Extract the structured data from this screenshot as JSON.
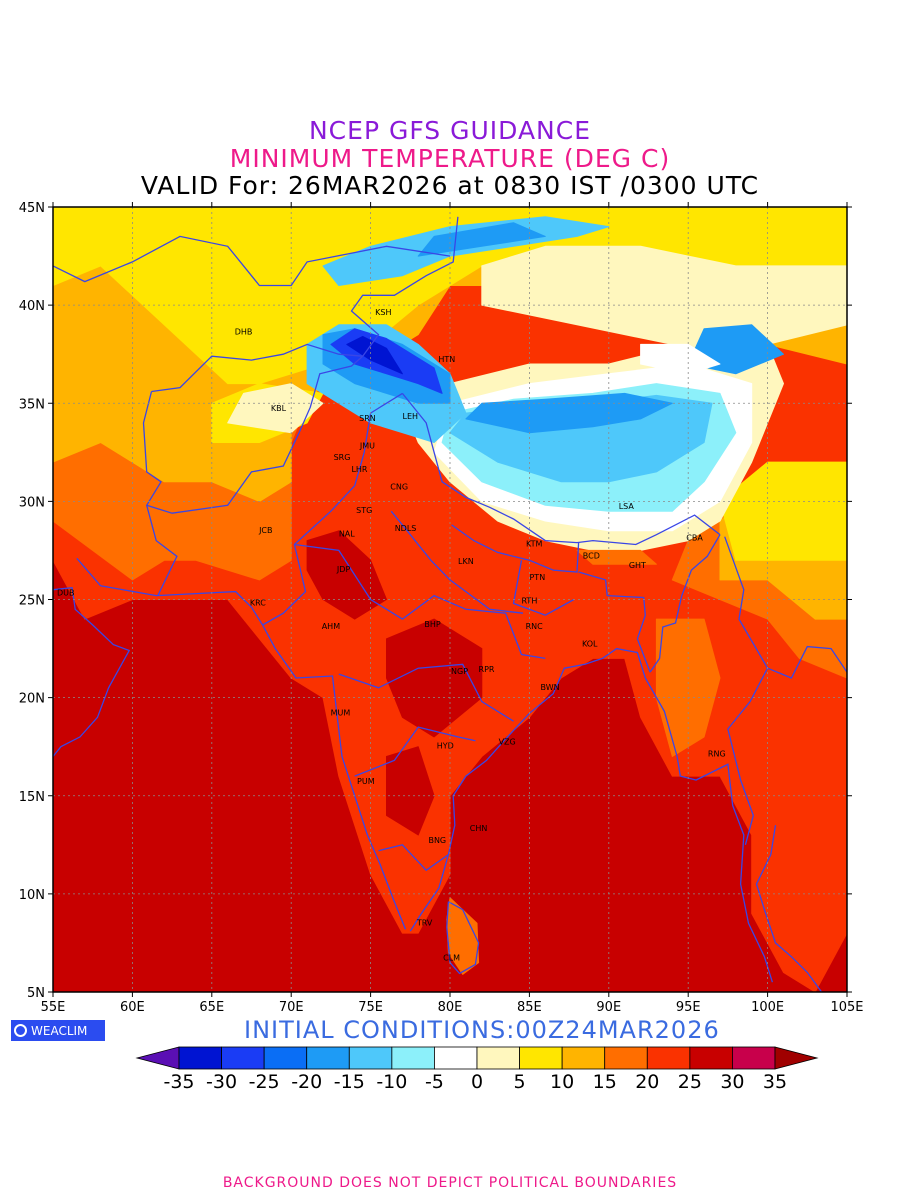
{
  "title": {
    "line1": "NCEP GFS GUIDANCE",
    "line2": "MINIMUM TEMPERATURE (DEG C)",
    "line3": "VALID For: 26MAR2026 at 0830 IST /0300 UTC"
  },
  "axes": {
    "x_ticks": [
      "55E",
      "60E",
      "65E",
      "70E",
      "75E",
      "80E",
      "85E",
      "90E",
      "95E",
      "100E",
      "105E"
    ],
    "y_ticks": [
      "45N",
      "40N",
      "35N",
      "30N",
      "25N",
      "20N",
      "15N",
      "10N",
      "5N"
    ],
    "lon_range": [
      55,
      105
    ],
    "lat_range": [
      5,
      45
    ],
    "gridlines": true
  },
  "cities": [
    {
      "name": "DHB",
      "lon": 67.0,
      "lat": 38.5
    },
    {
      "name": "KSH",
      "lon": 75.8,
      "lat": 39.5
    },
    {
      "name": "HTN",
      "lon": 79.8,
      "lat": 37.1
    },
    {
      "name": "KBL",
      "lon": 69.2,
      "lat": 34.6
    },
    {
      "name": "SRN",
      "lon": 74.8,
      "lat": 34.1
    },
    {
      "name": "LEH",
      "lon": 77.5,
      "lat": 34.2
    },
    {
      "name": "JMU",
      "lon": 74.8,
      "lat": 32.7
    },
    {
      "name": "SRG",
      "lon": 73.2,
      "lat": 32.1
    },
    {
      "name": "LHR",
      "lon": 74.3,
      "lat": 31.5
    },
    {
      "name": "CNG",
      "lon": 76.8,
      "lat": 30.6
    },
    {
      "name": "STG",
      "lon": 74.6,
      "lat": 29.4
    },
    {
      "name": "JCB",
      "lon": 68.4,
      "lat": 28.4
    },
    {
      "name": "NAL",
      "lon": 73.5,
      "lat": 28.2
    },
    {
      "name": "NDLS",
      "lon": 77.2,
      "lat": 28.5
    },
    {
      "name": "LSA",
      "lon": 91.1,
      "lat": 29.6
    },
    {
      "name": "KTM",
      "lon": 85.3,
      "lat": 27.7
    },
    {
      "name": "CBA",
      "lon": 95.4,
      "lat": 28.0
    },
    {
      "name": "BCD",
      "lon": 88.9,
      "lat": 27.1
    },
    {
      "name": "GHT",
      "lon": 91.8,
      "lat": 26.6
    },
    {
      "name": "JDP",
      "lon": 73.3,
      "lat": 26.4
    },
    {
      "name": "LKN",
      "lon": 81.0,
      "lat": 26.8
    },
    {
      "name": "PTN",
      "lon": 85.5,
      "lat": 26.0
    },
    {
      "name": "DUB",
      "lon": 55.8,
      "lat": 25.2
    },
    {
      "name": "KRC",
      "lon": 67.9,
      "lat": 24.7
    },
    {
      "name": "RTH",
      "lon": 85.0,
      "lat": 24.8
    },
    {
      "name": "BHP",
      "lon": 78.9,
      "lat": 23.6
    },
    {
      "name": "RNC",
      "lon": 85.3,
      "lat": 23.5
    },
    {
      "name": "AHM",
      "lon": 72.5,
      "lat": 23.5
    },
    {
      "name": "KOL",
      "lon": 88.8,
      "lat": 22.6
    },
    {
      "name": "NGP",
      "lon": 80.6,
      "lat": 21.2
    },
    {
      "name": "RPR",
      "lon": 82.3,
      "lat": 21.3
    },
    {
      "name": "BWN",
      "lon": 86.3,
      "lat": 20.4
    },
    {
      "name": "MUM",
      "lon": 73.1,
      "lat": 19.1
    },
    {
      "name": "HYD",
      "lon": 79.7,
      "lat": 17.4
    },
    {
      "name": "VZG",
      "lon": 83.6,
      "lat": 17.6
    },
    {
      "name": "RNG",
      "lon": 96.8,
      "lat": 17.0
    },
    {
      "name": "PUM",
      "lon": 74.7,
      "lat": 15.6
    },
    {
      "name": "CHN",
      "lon": 81.8,
      "lat": 13.2
    },
    {
      "name": "BNG",
      "lon": 79.2,
      "lat": 12.6
    },
    {
      "name": "TRV",
      "lon": 78.4,
      "lat": 8.4
    },
    {
      "name": "CLM",
      "lon": 80.1,
      "lat": 6.6
    }
  ],
  "logo": {
    "text": "WEACLIM"
  },
  "initial_conditions": "INITIAL CONDITIONS:00Z24MAR2026",
  "colorbar": {
    "labels": [
      "-35",
      "-30",
      "-25",
      "-20",
      "-15",
      "-10",
      "-5",
      "0",
      "5",
      "10",
      "15",
      "20",
      "25",
      "30",
      "35"
    ],
    "colors": [
      "#5a0fb4",
      "#0014d2",
      "#1a3cf5",
      "#0a6ef5",
      "#1e9bf5",
      "#4ec8fa",
      "#8cf0fa",
      "#ffffff",
      "#fff7be",
      "#ffe600",
      "#ffb400",
      "#ff6e00",
      "#fa3200",
      "#c80000",
      "#c8004b",
      "#a00000"
    ]
  },
  "field_colors": {
    "ocean": "#c80000",
    "warm": "#fa3200",
    "hot_inland": "#c80000",
    "orange": "#ff6e00",
    "amber": "#ffb400",
    "yellow": "#ffe600",
    "pale": "#fff7be",
    "white": "#ffffff",
    "cyan_light": "#8cf0fa",
    "cyan": "#4ec8fa",
    "blue_mid": "#1e9bf5",
    "blue": "#0a6ef5",
    "blue_deep": "#1a3cf5",
    "navy": "#0014d2",
    "border": "#3a46e6"
  },
  "footer": "BACKGROUND DOES NOT DEPICT POLITICAL BOUNDARIES"
}
